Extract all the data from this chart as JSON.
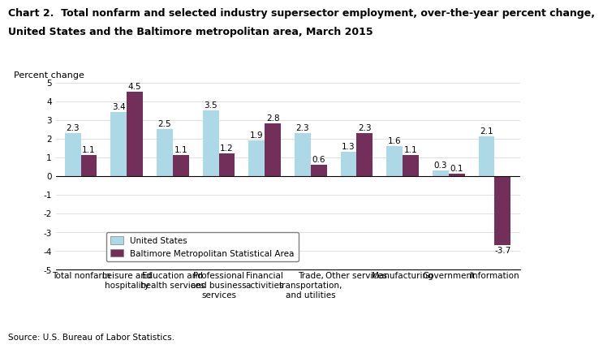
{
  "title_line1": "Chart 2.  Total nonfarm and selected industry supersector employment, over-the-year percent change,",
  "title_line2": "United States and the Baltimore metropolitan area, March 2015",
  "ylabel": "Percent change",
  "source": "Source: U.S. Bureau of Labor Statistics.",
  "categories": [
    "Total nonfarm",
    "Leisure and\nhospitality",
    "Education and\nhealth services",
    "Professional\nand business\nservices",
    "Financial\nactivities",
    "Trade,\ntransportation,\nand utilities",
    "Other services",
    "Manufacturing",
    "Government",
    "Information"
  ],
  "us_values": [
    2.3,
    3.4,
    2.5,
    3.5,
    1.9,
    2.3,
    1.3,
    1.6,
    0.3,
    2.1
  ],
  "balt_values": [
    1.1,
    4.5,
    1.1,
    1.2,
    2.8,
    0.6,
    2.3,
    1.1,
    0.1,
    -3.7
  ],
  "us_color": "#add8e6",
  "balt_color": "#722f5a",
  "ylim": [
    -5.0,
    5.0
  ],
  "yticks": [
    -5.0,
    -4.0,
    -3.0,
    -2.0,
    -1.0,
    0.0,
    1.0,
    2.0,
    3.0,
    4.0,
    5.0
  ],
  "bar_width": 0.35,
  "legend_us": "United States",
  "legend_balt": "Baltimore Metropolitan Statistical Area",
  "title_fontsize": 9.0,
  "label_fontsize": 8.0,
  "tick_fontsize": 7.5,
  "value_fontsize": 7.5
}
